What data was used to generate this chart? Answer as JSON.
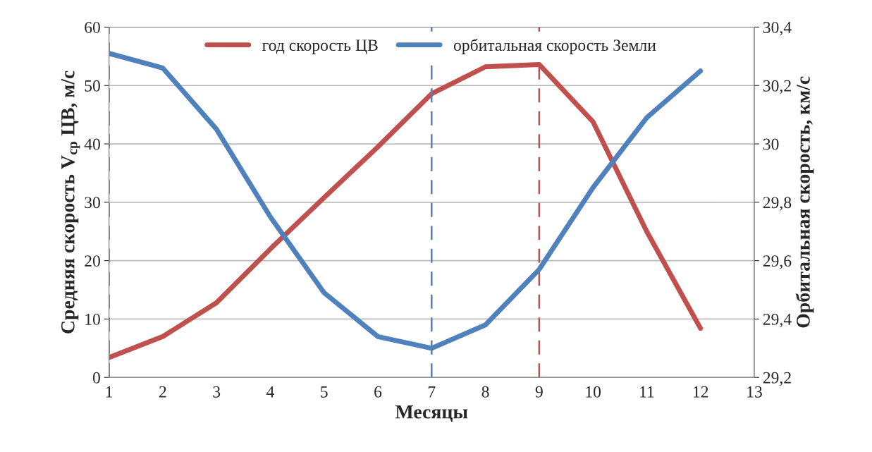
{
  "chart_data": {
    "type": "line",
    "xlabel": "Месяцы",
    "ylabel": "Средняя скорость V$_{ср}$ ЦВ, м/с",
    "y2label": "Орбитальная скорость, км/с",
    "x": [
      1,
      2,
      3,
      4,
      5,
      6,
      7,
      8,
      9,
      10,
      11,
      12
    ],
    "series": [
      {
        "name": "год скорость ЦВ",
        "color": "#c0504d",
        "values": [
          3.4,
          7,
          12.8,
          22,
          30.8,
          39.5,
          48.6,
          53.2,
          53.6,
          43.8,
          25,
          8.4
        ]
      },
      {
        "name": "орбитальная скорость Земли",
        "color": "#4f81bd",
        "axis": "y2",
        "values": [
          30.31,
          30.26,
          30.05,
          29.75,
          29.49,
          29.34,
          29.3,
          29.38,
          29.57,
          29.85,
          30.09,
          30.25
        ]
      }
    ],
    "xlim": [
      1,
      13
    ],
    "xticks": [
      1,
      2,
      3,
      4,
      5,
      6,
      7,
      8,
      9,
      10,
      11,
      12,
      13
    ],
    "ylim": [
      0,
      60
    ],
    "yticks": [
      0,
      10,
      20,
      30,
      40,
      50,
      60
    ],
    "y2lim": [
      29.2,
      30.4
    ],
    "y2ticks": [
      {
        "value": 29.2,
        "label": "29,2"
      },
      {
        "value": 29.4,
        "label": "29,4"
      },
      {
        "value": 29.6,
        "label": "29,6"
      },
      {
        "value": 29.8,
        "label": "29,8"
      },
      {
        "value": 30,
        "label": "30"
      },
      {
        "value": 30.2,
        "label": "30,2"
      },
      {
        "value": 30.4,
        "label": "30,4"
      }
    ],
    "ref_lines": [
      {
        "axis": "x",
        "value": 1,
        "color": "#4f81bd",
        "line_style": "dashed"
      },
      {
        "axis": "x",
        "value": 7,
        "color": "#4f81bd",
        "line_style": "dashed"
      },
      {
        "axis": "x",
        "value": 9,
        "color": "#c0504d",
        "line_style": "dashed"
      }
    ],
    "grid": "y",
    "legend": "top",
    "line_style": "solid",
    "marker": "none"
  }
}
